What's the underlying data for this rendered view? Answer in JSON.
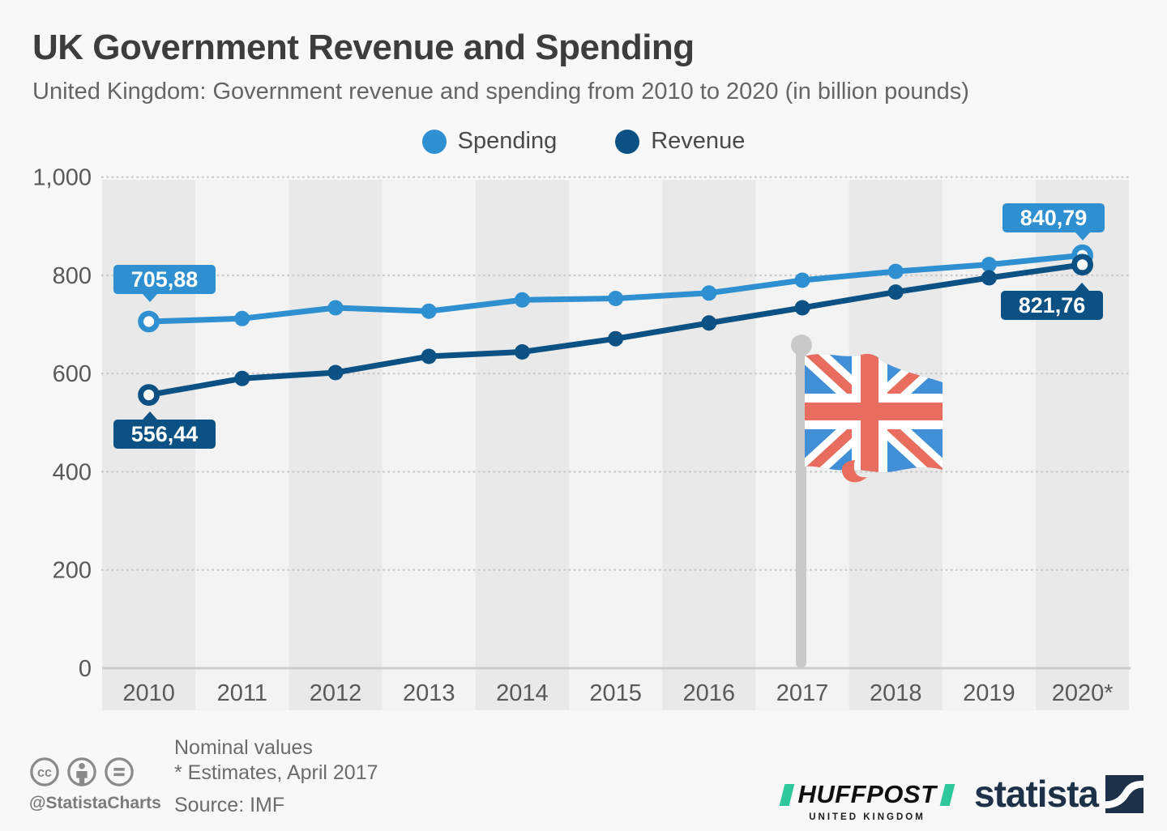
{
  "header": {
    "title": "UK Government Revenue and Spending",
    "subtitle": "United Kingdom: Government revenue and spending from 2010 to 2020 (in billion pounds)"
  },
  "legend": [
    {
      "label": "Spending",
      "color": "#2e90d1"
    },
    {
      "label": "Revenue",
      "color": "#0b5183"
    }
  ],
  "chart_data": {
    "type": "line",
    "title": "UK Government Revenue and Spending",
    "xlabel": "",
    "ylabel": "",
    "categories": [
      "2010",
      "2011",
      "2012",
      "2013",
      "2014",
      "2015",
      "2016",
      "2017",
      "2018",
      "2019",
      "2020*"
    ],
    "series": [
      {
        "name": "Spending",
        "color": "#2e90d1",
        "values": [
          705.88,
          712,
          734,
          727,
          750,
          753,
          764,
          790,
          808,
          822,
          840.79
        ]
      },
      {
        "name": "Revenue",
        "color": "#0b5183",
        "values": [
          556.44,
          590,
          602,
          635,
          644,
          671,
          703,
          734,
          766,
          795,
          821.76
        ]
      }
    ],
    "ylim": [
      0,
      1000
    ],
    "yticks": [
      {
        "value": 0,
        "label": "0"
      },
      {
        "value": 200,
        "label": "200"
      },
      {
        "value": 400,
        "label": "400"
      },
      {
        "value": 600,
        "label": "600"
      },
      {
        "value": 800,
        "label": "800"
      },
      {
        "value": 1000,
        "label": "1,000"
      }
    ],
    "grid": "dotted horizontal lines, alternating vertical year bands",
    "legend_position": "top",
    "annotations": [
      {
        "series": "Spending",
        "index": 0,
        "label": "705,88"
      },
      {
        "series": "Revenue",
        "index": 0,
        "label": "556,44"
      },
      {
        "series": "Spending",
        "index": 10,
        "label": "840,79"
      },
      {
        "series": "Revenue",
        "index": 10,
        "label": "821,76"
      }
    ]
  },
  "footer": {
    "handle": "@StatistaCharts",
    "note1": "Nominal values",
    "note2": "* Estimates, April 2017",
    "source": "Source: IMF",
    "huffpost": "HUFFPOST",
    "huffpost_sub": "UNITED KINGDOM",
    "statista": "statista"
  },
  "colors": {
    "spending": "#2e90d1",
    "revenue": "#0b5183",
    "band_dark": "#e9e9e9",
    "band_light": "#f3f3f3",
    "grid": "#c9c9c9",
    "axis": "#cccccc",
    "pole": "#c9c9c9",
    "flag_blue": "#4190d7",
    "flag_red": "#e96d5f",
    "huffpost_green": "#2fc89b",
    "statista_navy": "#1d3249",
    "background": "#f8f8f8",
    "title_text": "#3d3d3d",
    "subtitle_text": "#656565",
    "tick_text": "#595959",
    "note_text": "#6b6b6b",
    "footer_gray": "#7b7b7b"
  }
}
